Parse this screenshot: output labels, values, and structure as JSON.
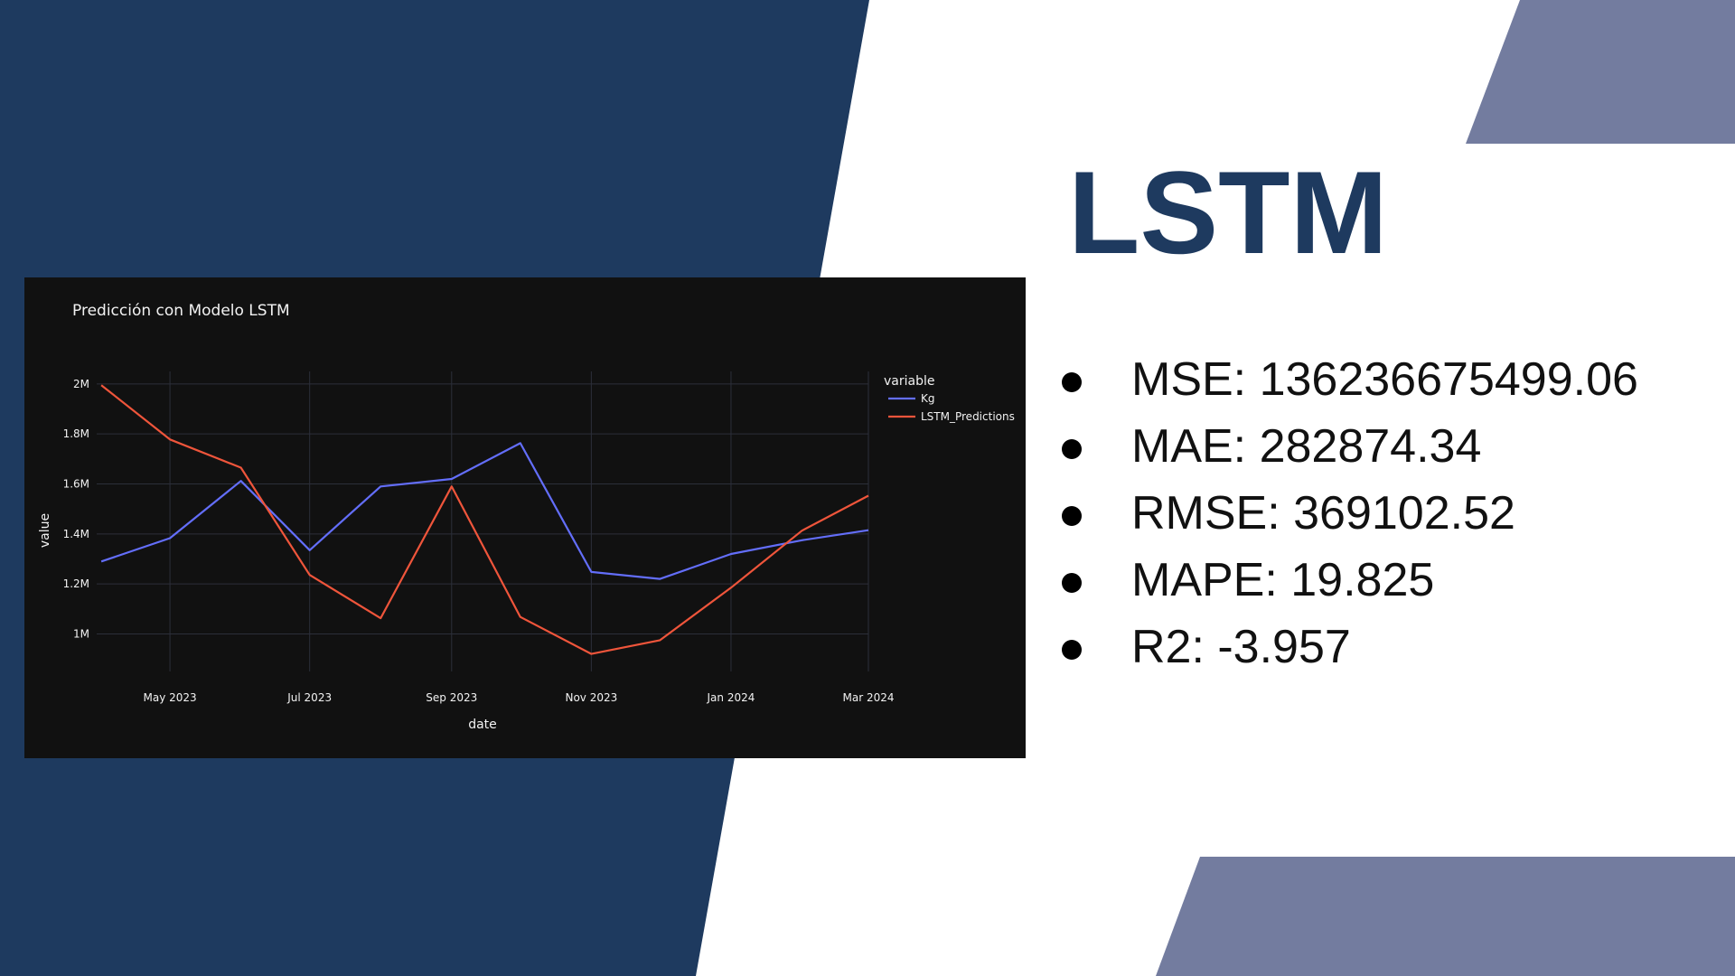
{
  "slide": {
    "title": "LSTM",
    "colors": {
      "navy": "#1e3a5f",
      "slate": "#737c9f",
      "background": "#ffffff"
    },
    "metrics": [
      {
        "label": "MSE: 136236675499.06"
      },
      {
        "label": "MAE: 282874.34"
      },
      {
        "label": "RMSE: 369102.52"
      },
      {
        "label": "MAPE: 19.825"
      },
      {
        "label": "R2: -3.957"
      }
    ]
  },
  "chart_data": {
    "type": "line",
    "title": "Predicción con Modelo LSTM",
    "xlabel": "date",
    "ylabel": "value",
    "legend_title": "variable",
    "legend_position": "top-right",
    "grid": true,
    "x": [
      "2023-04-01",
      "2023-05-01",
      "2023-06-01",
      "2023-07-01",
      "2023-08-01",
      "2023-09-01",
      "2023-10-01",
      "2023-11-01",
      "2023-12-01",
      "2024-01-01",
      "2024-02-01",
      "2024-03-01"
    ],
    "x_range": [
      "2023-03-30",
      "2024-03-01"
    ],
    "x_ticks": [
      {
        "date": "2023-05-01",
        "label": "May 2023"
      },
      {
        "date": "2023-07-01",
        "label": "Jul 2023"
      },
      {
        "date": "2023-09-01",
        "label": "Sep 2023"
      },
      {
        "date": "2023-11-01",
        "label": "Nov 2023"
      },
      {
        "date": "2024-01-01",
        "label": "Jan 2024"
      },
      {
        "date": "2024-03-01",
        "label": "Mar 2024"
      }
    ],
    "ylim": [
      850000,
      2050000
    ],
    "y_ticks": [
      {
        "value": 1000000,
        "label": "1M"
      },
      {
        "value": 1200000,
        "label": "1.2M"
      },
      {
        "value": 1400000,
        "label": "1.4M"
      },
      {
        "value": 1600000,
        "label": "1.6M"
      },
      {
        "value": 1800000,
        "label": "1.8M"
      },
      {
        "value": 2000000,
        "label": "2M"
      }
    ],
    "series": [
      {
        "name": "Kg",
        "color": "#636efa",
        "values": [
          1290000,
          1383000,
          1612000,
          1335000,
          1590000,
          1620000,
          1763000,
          1248000,
          1220000,
          1320000,
          1375000,
          1415000
        ]
      },
      {
        "name": "LSTM_Predictions",
        "color": "#ef553b",
        "values": [
          1995000,
          1778000,
          1665000,
          1236000,
          1063000,
          1590000,
          1068000,
          920000,
          975000,
          1185000,
          1413000,
          1553000
        ]
      }
    ]
  }
}
